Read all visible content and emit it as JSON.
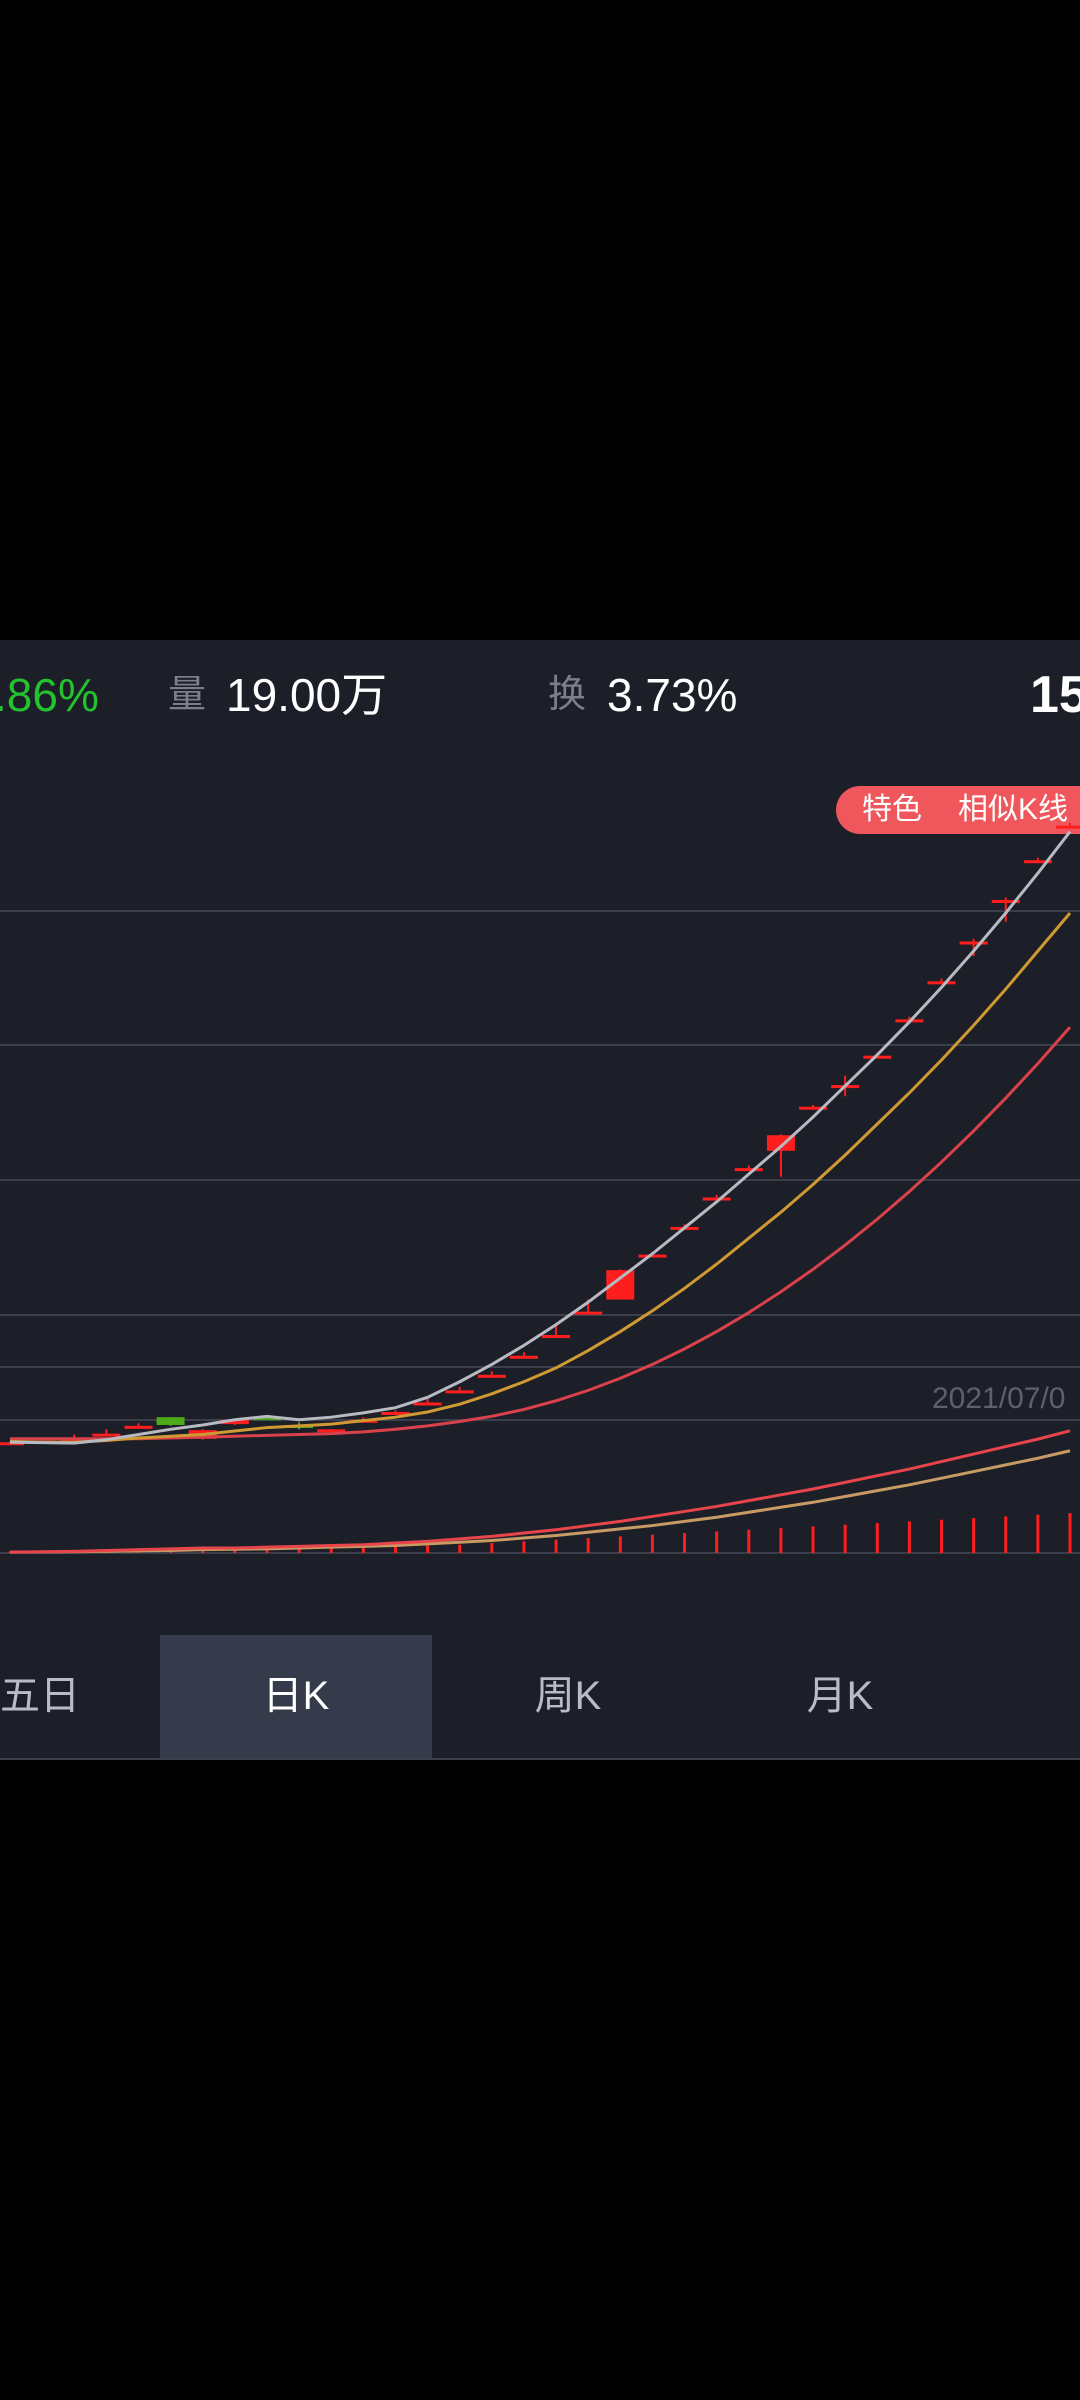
{
  "stats": {
    "change_pct": ".86%",
    "volume_label": "量",
    "volume_value": "19.00万",
    "turnover_label": "换",
    "turnover_value": "3.73%",
    "price_partial": "15"
  },
  "badge": {
    "feature": "特色",
    "similar_k": "相似K线"
  },
  "date_label": "2021/07/0",
  "tabs": [
    {
      "label": "五日",
      "active": false
    },
    {
      "label": "日K",
      "active": true
    },
    {
      "label": "周K",
      "active": false
    },
    {
      "label": "月K",
      "active": false
    }
  ],
  "colors": {
    "up": "#ff1e1e",
    "down": "#4eaa1a",
    "ma_short": "#b7bac3",
    "ma_mid": "#cf9a34",
    "ma_long": "#d9414b",
    "vol_ma1": "#e8444c",
    "vol_ma2": "#c89a64"
  },
  "chart_data": {
    "type": "candlestick",
    "title": "",
    "candles": [
      {
        "o": 0.1,
        "c": 0.1,
        "h": 0.15,
        "l": 0.05,
        "dir": "flat"
      },
      {
        "o": 0.1,
        "c": 0.2,
        "h": 0.2,
        "l": 0.1,
        "dir": "up"
      },
      {
        "o": 0.2,
        "c": 0.22,
        "h": 0.55,
        "l": 0.2,
        "dir": "up"
      },
      {
        "o": 0.55,
        "c": 0.6,
        "h": 0.85,
        "l": 0.55,
        "dir": "up"
      },
      {
        "o": 1.0,
        "c": 1.05,
        "h": 1.2,
        "l": 1.0,
        "dir": "up"
      },
      {
        "o": 1.55,
        "c": 1.1,
        "h": 1.55,
        "l": 1.05,
        "dir": "down"
      },
      {
        "o": 0.3,
        "c": 0.8,
        "h": 0.85,
        "l": 0.25,
        "dir": "up"
      },
      {
        "o": 1.15,
        "c": 1.4,
        "h": 1.45,
        "l": 1.1,
        "dir": "up"
      },
      {
        "o": 1.4,
        "c": 1.55,
        "h": 1.6,
        "l": 1.4,
        "dir": "down"
      },
      {
        "o": 1.05,
        "c": 1.1,
        "h": 1.25,
        "l": 0.85,
        "dir": "down"
      },
      {
        "o": 0.75,
        "c": 0.85,
        "h": 0.85,
        "l": 0.7,
        "dir": "up"
      },
      {
        "o": 1.35,
        "c": 1.4,
        "h": 1.55,
        "l": 1.35,
        "dir": "up"
      },
      {
        "o": 1.8,
        "c": 1.85,
        "h": 1.95,
        "l": 1.8,
        "dir": "up"
      },
      {
        "o": 2.35,
        "c": 2.4,
        "h": 2.6,
        "l": 2.35,
        "dir": "up"
      },
      {
        "o": 3.05,
        "c": 3.1,
        "h": 3.3,
        "l": 3.05,
        "dir": "up"
      },
      {
        "o": 3.95,
        "c": 4.0,
        "h": 4.2,
        "l": 3.95,
        "dir": "up"
      },
      {
        "o": 5.05,
        "c": 5.1,
        "h": 5.3,
        "l": 5.05,
        "dir": "up"
      },
      {
        "o": 6.25,
        "c": 6.3,
        "h": 6.9,
        "l": 6.25,
        "dir": "up"
      },
      {
        "o": 7.6,
        "c": 7.65,
        "h": 8.35,
        "l": 7.6,
        "dir": "up"
      },
      {
        "o": 8.35,
        "c": 10.05,
        "h": 10.1,
        "l": 8.35,
        "dir": "up"
      },
      {
        "o": 10.9,
        "c": 10.95,
        "h": 11.1,
        "l": 10.9,
        "dir": "up"
      },
      {
        "o": 12.5,
        "c": 12.55,
        "h": 12.7,
        "l": 12.5,
        "dir": "up"
      },
      {
        "o": 14.2,
        "c": 14.25,
        "h": 14.4,
        "l": 14.2,
        "dir": "up"
      },
      {
        "o": 15.9,
        "c": 15.95,
        "h": 16.1,
        "l": 15.9,
        "dir": "up"
      },
      {
        "o": 16.95,
        "c": 17.85,
        "h": 17.9,
        "l": 15.45,
        "dir": "up"
      },
      {
        "o": 19.45,
        "c": 19.5,
        "h": 19.6,
        "l": 19.45,
        "dir": "up"
      },
      {
        "o": 20.7,
        "c": 20.75,
        "h": 21.3,
        "l": 20.1,
        "dir": "up"
      },
      {
        "o": 22.4,
        "c": 22.45,
        "h": 22.6,
        "l": 22.4,
        "dir": "up"
      },
      {
        "o": 24.5,
        "c": 24.55,
        "h": 24.7,
        "l": 24.5,
        "dir": "up"
      },
      {
        "o": 26.7,
        "c": 26.75,
        "h": 26.9,
        "l": 26.7,
        "dir": "up"
      },
      {
        "o": 29.0,
        "c": 29.05,
        "h": 29.2,
        "l": 28.2,
        "dir": "up"
      },
      {
        "o": 31.4,
        "c": 31.45,
        "h": 31.6,
        "l": 30.2,
        "dir": "up"
      },
      {
        "o": 33.7,
        "c": 33.75,
        "h": 33.9,
        "l": 33.7,
        "dir": "up"
      },
      {
        "o": 35.7,
        "c": 35.75,
        "h": 35.9,
        "l": 35.7,
        "dir": "up"
      }
    ],
    "ma_short": [
      0.1,
      0.08,
      0.05,
      0.25,
      0.55,
      0.85,
      1.1,
      1.4,
      1.6,
      1.4,
      1.55,
      1.8,
      2.1,
      2.7,
      3.6,
      4.6,
      5.7,
      6.9,
      8.2,
      9.6,
      11.0,
      12.5,
      14.0,
      15.6,
      17.2,
      18.9,
      20.7,
      22.5,
      24.4,
      26.4,
      28.5,
      30.7,
      33.0,
      35.4
    ],
    "ma_mid": [
      0.15,
      0.1,
      0.1,
      0.2,
      0.35,
      0.45,
      0.55,
      0.75,
      0.95,
      1.05,
      1.15,
      1.35,
      1.55,
      1.85,
      2.3,
      2.9,
      3.6,
      4.4,
      5.4,
      6.5,
      7.7,
      9.0,
      10.4,
      11.9,
      13.4,
      15.0,
      16.7,
      18.5,
      20.3,
      22.2,
      24.2,
      26.3,
      28.5,
      30.7
    ],
    "ma_long": [
      0.3,
      0.3,
      0.3,
      0.3,
      0.3,
      0.35,
      0.4,
      0.45,
      0.5,
      0.55,
      0.6,
      0.7,
      0.85,
      1.05,
      1.3,
      1.6,
      2.0,
      2.5,
      3.1,
      3.8,
      4.6,
      5.5,
      6.5,
      7.6,
      8.8,
      10.1,
      11.5,
      13.0,
      14.6,
      16.3,
      18.1,
      20.0,
      22.0,
      24.1
    ],
    "volume": [
      0.02,
      0.02,
      0.02,
      0.03,
      0.03,
      0.04,
      0.04,
      0.05,
      0.05,
      0.06,
      0.06,
      0.07,
      0.08,
      0.09,
      0.1,
      0.12,
      0.14,
      0.16,
      0.18,
      0.2,
      0.22,
      0.24,
      0.26,
      0.28,
      0.3,
      0.32,
      0.34,
      0.36,
      0.38,
      0.4,
      0.42,
      0.44,
      0.46,
      0.48
    ],
    "vol_ma1": [
      0.01,
      0.015,
      0.02,
      0.03,
      0.04,
      0.05,
      0.06,
      0.06,
      0.07,
      0.08,
      0.09,
      0.1,
      0.12,
      0.14,
      0.17,
      0.2,
      0.24,
      0.28,
      0.33,
      0.38,
      0.44,
      0.5,
      0.56,
      0.63,
      0.7,
      0.77,
      0.85,
      0.93,
      1.01,
      1.1,
      1.19,
      1.28,
      1.37,
      1.47
    ],
    "vol_ma2": [
      0.01,
      0.012,
      0.015,
      0.02,
      0.025,
      0.03,
      0.04,
      0.045,
      0.05,
      0.06,
      0.07,
      0.08,
      0.09,
      0.11,
      0.13,
      0.15,
      0.18,
      0.21,
      0.25,
      0.29,
      0.33,
      0.38,
      0.43,
      0.49,
      0.55,
      0.61,
      0.68,
      0.75,
      0.82,
      0.9,
      0.98,
      1.06,
      1.14,
      1.23
    ],
    "ylim": [
      0,
      37
    ],
    "vol_ylim": [
      0,
      1.6
    ]
  }
}
